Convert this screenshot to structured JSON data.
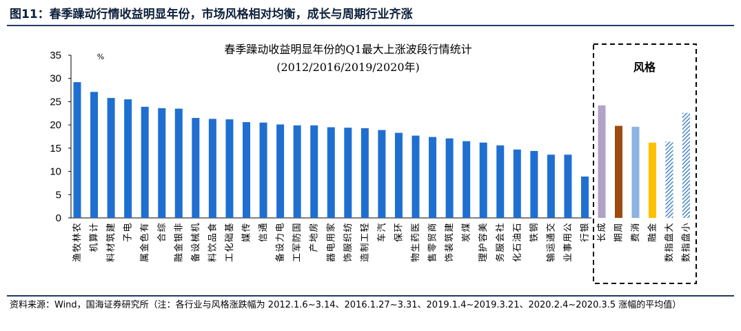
{
  "figure": {
    "title": "图11：春季躁动行情收益明显年份，市场风格相对均衡，成长与周期行业齐涨",
    "source": "资料来源：Wind，国海证券研究所（注：各行业与风格涨跌幅为 2012.1.6~3.14、2016.1.27~3.31、2019.1.4~2019.3.21、2020.2.4~2020.3.5 涨幅的平均值）"
  },
  "chart_data": {
    "type": "bar",
    "title": "春季躁动收益明显年份的Q1最大上涨波段行情统计",
    "subtitle": "(2012/2016/2019/2020年)",
    "unit_label": "%",
    "ylim": [
      0,
      35
    ],
    "yticks": [
      0,
      5,
      10,
      15,
      20,
      25,
      30,
      35
    ],
    "grid": false,
    "bar_color": "#1f6fd0",
    "categories": [
      "农林牧渔",
      "计算机",
      "建筑材料",
      "电子",
      "有色金属",
      "综合",
      "非银金融",
      "机械设备",
      "食品饮料",
      "基础化工",
      "传媒",
      "通信",
      "电力设备",
      "国防军工",
      "房地产",
      "家用电器",
      "纺织服饰",
      "轻工制造",
      "汽车",
      "环保",
      "医药生物",
      "商贸零售",
      "建筑装饰",
      "煤炭",
      "美容护理",
      "社会服务",
      "石油石化",
      "钢铁",
      "交通运输",
      "公用事业",
      "银行"
    ],
    "values": [
      29.2,
      27.1,
      25.8,
      25.5,
      23.9,
      23.6,
      23.5,
      21.5,
      21.3,
      21.2,
      20.6,
      20.5,
      20.1,
      19.9,
      19.9,
      19.5,
      19.4,
      19.3,
      18.9,
      18.3,
      17.7,
      17.4,
      17.1,
      16.5,
      16.2,
      15.6,
      14.7,
      14.4,
      13.6,
      13.6,
      8.9
    ],
    "style_group": {
      "label": "风格",
      "categories": [
        "成长",
        "周期",
        "消费",
        "金融",
        "大盘指数",
        "小盘指数"
      ],
      "values": [
        24.2,
        19.8,
        19.6,
        16.2,
        16.4,
        22.6
      ],
      "colors": [
        "#b3a2c7",
        "#9c4b13",
        "#8db3e2",
        "#ffc000",
        "#2e75c6",
        "#2e75c6"
      ],
      "patterns": [
        "solid",
        "solid",
        "solid",
        "solid",
        "hatch",
        "hatch"
      ]
    }
  }
}
